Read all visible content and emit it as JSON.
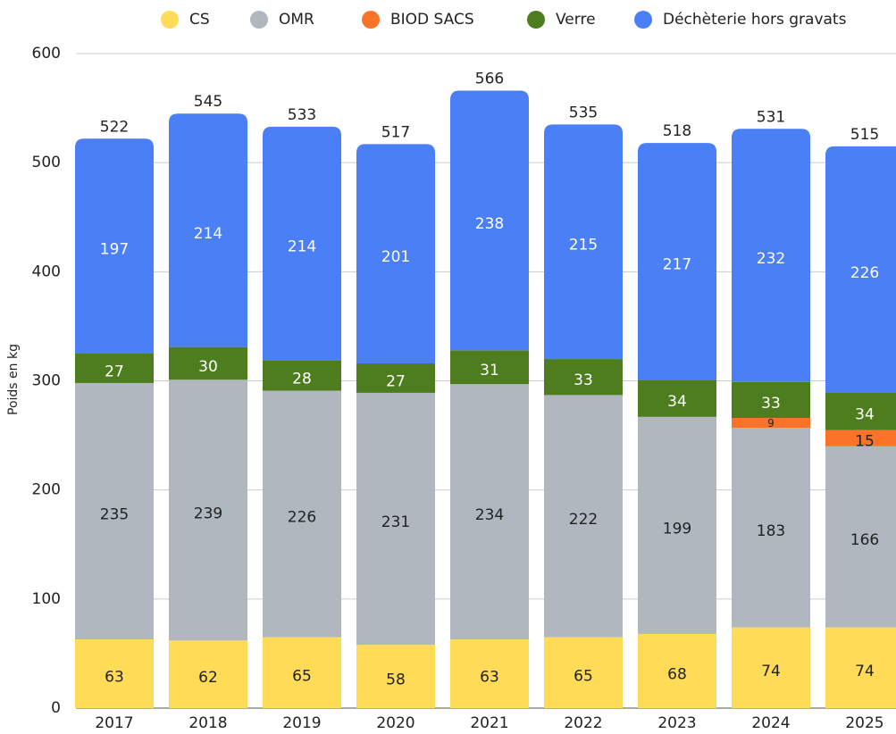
{
  "chart_data": {
    "type": "stacked_bar",
    "y_label": "Poids en kg",
    "categories": [
      "2017",
      "2018",
      "2019",
      "2020",
      "2021",
      "2022",
      "2023",
      "2024",
      "2025"
    ],
    "series": [
      {
        "name": "CS",
        "color": "#ffdb58",
        "label_color": "#222222",
        "values": [
          63,
          62,
          65,
          58,
          63,
          65,
          68,
          74,
          74
        ]
      },
      {
        "name": "OMR",
        "color": "#b0b7bf",
        "label_color": "#222222",
        "values": [
          235,
          239,
          226,
          231,
          234,
          222,
          199,
          183,
          166
        ]
      },
      {
        "name": "BIOD SACS",
        "color": "#fb7328",
        "label_color": "#222222",
        "values": [
          null,
          null,
          null,
          null,
          null,
          null,
          null,
          9,
          15
        ]
      },
      {
        "name": "Verre",
        "color": "#4e7d20",
        "label_color": "#ffffff",
        "values": [
          27,
          30,
          28,
          27,
          31,
          33,
          34,
          33,
          34
        ]
      },
      {
        "name": "Déchèterie hors gravats",
        "color": "#4a7ff5",
        "label_color": "#ffffff",
        "values": [
          197,
          214,
          214,
          201,
          238,
          215,
          217,
          232,
          226
        ]
      }
    ],
    "totals": [
      522,
      545,
      533,
      517,
      566,
      535,
      518,
      531,
      515
    ],
    "ylim": [
      0,
      600
    ],
    "yticks": [
      0,
      100,
      200,
      300,
      400,
      500,
      600
    ],
    "grid": true,
    "legend": "top"
  }
}
